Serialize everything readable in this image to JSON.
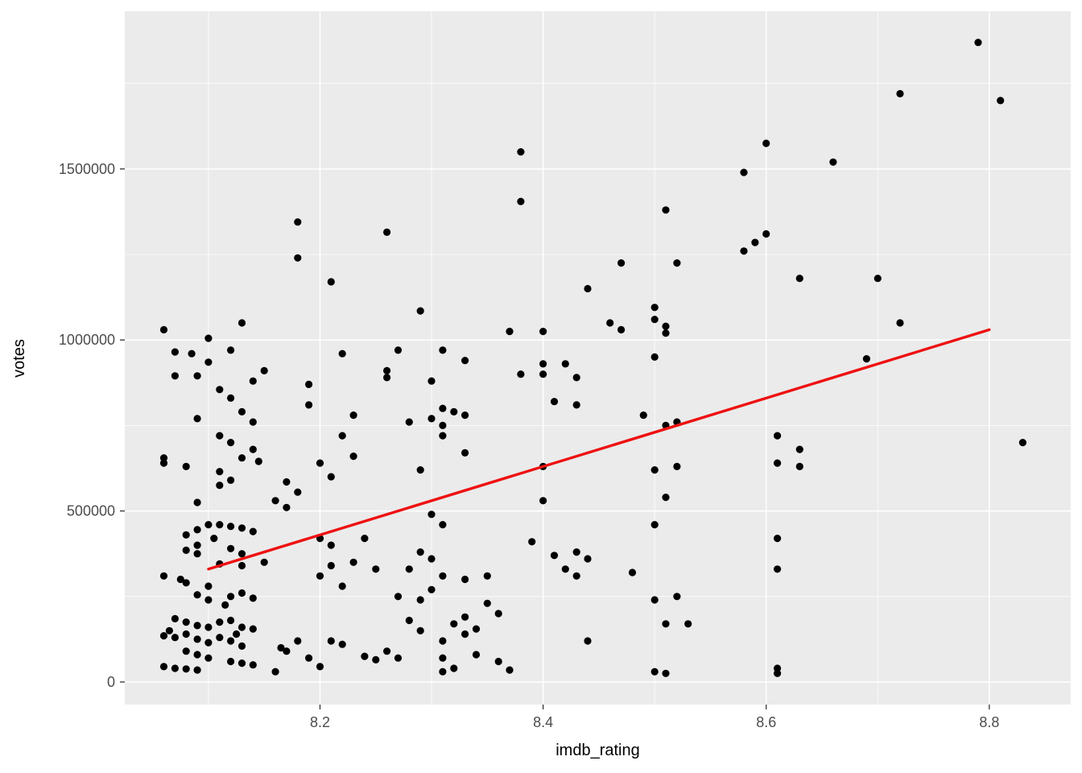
{
  "chart_data": {
    "type": "scatter",
    "title": "",
    "xlabel": "imdb_rating",
    "ylabel": "votes",
    "xlim": [
      8.025,
      8.873
    ],
    "ylim": [
      -66000,
      1961000
    ],
    "x_ticks": [
      8.2,
      8.4,
      8.6,
      8.8
    ],
    "x_tick_labels": [
      "8.2",
      "8.4",
      "8.6",
      "8.8"
    ],
    "x_minor_ticks": [
      8.1,
      8.3,
      8.5,
      8.7
    ],
    "y_ticks": [
      0,
      500000,
      1000000,
      1500000
    ],
    "y_tick_labels": [
      "0",
      "500000",
      "1000000",
      "1500000"
    ],
    "y_minor_ticks": [
      250000,
      750000,
      1250000,
      1750000
    ],
    "grid": true,
    "legend": "none",
    "panel_color": "#EBEBEB",
    "grid_color": "#FFFFFF",
    "point_color": "#000000",
    "point_radius": 4.6,
    "trend_color": "#EE1111",
    "trend_width": 3.4,
    "tick_label_color": "#4D4D4D",
    "tick_mark_color": "#333333",
    "trend_line": {
      "x1": 8.1,
      "y1": 330000,
      "x2": 8.8,
      "y2": 1030000
    },
    "points": [
      [
        8.06,
        1030000
      ],
      [
        8.06,
        655000
      ],
      [
        8.06,
        640000
      ],
      [
        8.06,
        310000
      ],
      [
        8.06,
        135000
      ],
      [
        8.06,
        45000
      ],
      [
        8.065,
        150000
      ],
      [
        8.07,
        965000
      ],
      [
        8.07,
        895000
      ],
      [
        8.07,
        185000
      ],
      [
        8.07,
        130000
      ],
      [
        8.07,
        40000
      ],
      [
        8.075,
        300000
      ],
      [
        8.08,
        630000
      ],
      [
        8.08,
        430000
      ],
      [
        8.08,
        385000
      ],
      [
        8.08,
        290000
      ],
      [
        8.08,
        175000
      ],
      [
        8.08,
        140000
      ],
      [
        8.08,
        90000
      ],
      [
        8.08,
        38000
      ],
      [
        8.085,
        960000
      ],
      [
        8.09,
        895000
      ],
      [
        8.09,
        770000
      ],
      [
        8.09,
        525000
      ],
      [
        8.09,
        445000
      ],
      [
        8.09,
        400000
      ],
      [
        8.09,
        375000
      ],
      [
        8.09,
        255000
      ],
      [
        8.09,
        165000
      ],
      [
        8.09,
        125000
      ],
      [
        8.09,
        80000
      ],
      [
        8.09,
        35000
      ],
      [
        8.1,
        1005000
      ],
      [
        8.1,
        935000
      ],
      [
        8.1,
        460000
      ],
      [
        8.1,
        280000
      ],
      [
        8.1,
        240000
      ],
      [
        8.1,
        160000
      ],
      [
        8.1,
        115000
      ],
      [
        8.1,
        70000
      ],
      [
        8.105,
        420000
      ],
      [
        8.11,
        855000
      ],
      [
        8.11,
        720000
      ],
      [
        8.11,
        615000
      ],
      [
        8.11,
        575000
      ],
      [
        8.11,
        460000
      ],
      [
        8.11,
        345000
      ],
      [
        8.11,
        175000
      ],
      [
        8.11,
        130000
      ],
      [
        8.115,
        225000
      ],
      [
        8.12,
        970000
      ],
      [
        8.12,
        830000
      ],
      [
        8.12,
        700000
      ],
      [
        8.12,
        590000
      ],
      [
        8.12,
        455000
      ],
      [
        8.12,
        390000
      ],
      [
        8.12,
        250000
      ],
      [
        8.12,
        180000
      ],
      [
        8.12,
        120000
      ],
      [
        8.12,
        60000
      ],
      [
        8.125,
        140000
      ],
      [
        8.13,
        1050000
      ],
      [
        8.13,
        790000
      ],
      [
        8.13,
        655000
      ],
      [
        8.13,
        450000
      ],
      [
        8.13,
        375000
      ],
      [
        8.13,
        340000
      ],
      [
        8.13,
        260000
      ],
      [
        8.13,
        160000
      ],
      [
        8.13,
        105000
      ],
      [
        8.13,
        55000
      ],
      [
        8.14,
        880000
      ],
      [
        8.14,
        760000
      ],
      [
        8.14,
        680000
      ],
      [
        8.14,
        440000
      ],
      [
        8.14,
        245000
      ],
      [
        8.14,
        155000
      ],
      [
        8.14,
        50000
      ],
      [
        8.145,
        645000
      ],
      [
        8.15,
        910000
      ],
      [
        8.15,
        350000
      ],
      [
        8.16,
        530000
      ],
      [
        8.16,
        30000
      ],
      [
        8.165,
        100000
      ],
      [
        8.17,
        585000
      ],
      [
        8.17,
        510000
      ],
      [
        8.17,
        90000
      ],
      [
        8.18,
        1345000
      ],
      [
        8.18,
        1240000
      ],
      [
        8.18,
        555000
      ],
      [
        8.18,
        120000
      ],
      [
        8.19,
        870000
      ],
      [
        8.19,
        810000
      ],
      [
        8.19,
        70000
      ],
      [
        8.2,
        640000
      ],
      [
        8.2,
        420000
      ],
      [
        8.2,
        310000
      ],
      [
        8.2,
        45000
      ],
      [
        8.21,
        1170000
      ],
      [
        8.21,
        600000
      ],
      [
        8.21,
        400000
      ],
      [
        8.21,
        340000
      ],
      [
        8.21,
        120000
      ],
      [
        8.22,
        960000
      ],
      [
        8.22,
        720000
      ],
      [
        8.22,
        280000
      ],
      [
        8.22,
        110000
      ],
      [
        8.23,
        780000
      ],
      [
        8.23,
        660000
      ],
      [
        8.23,
        350000
      ],
      [
        8.24,
        420000
      ],
      [
        8.24,
        75000
      ],
      [
        8.25,
        330000
      ],
      [
        8.25,
        65000
      ],
      [
        8.26,
        1315000
      ],
      [
        8.26,
        910000
      ],
      [
        8.26,
        890000
      ],
      [
        8.26,
        90000
      ],
      [
        8.27,
        970000
      ],
      [
        8.27,
        250000
      ],
      [
        8.27,
        70000
      ],
      [
        8.28,
        760000
      ],
      [
        8.28,
        330000
      ],
      [
        8.28,
        180000
      ],
      [
        8.29,
        1085000
      ],
      [
        8.29,
        620000
      ],
      [
        8.29,
        380000
      ],
      [
        8.29,
        240000
      ],
      [
        8.29,
        150000
      ],
      [
        8.3,
        880000
      ],
      [
        8.3,
        770000
      ],
      [
        8.3,
        490000
      ],
      [
        8.3,
        360000
      ],
      [
        8.3,
        270000
      ],
      [
        8.31,
        970000
      ],
      [
        8.31,
        800000
      ],
      [
        8.31,
        750000
      ],
      [
        8.31,
        720000
      ],
      [
        8.31,
        460000
      ],
      [
        8.31,
        310000
      ],
      [
        8.31,
        120000
      ],
      [
        8.31,
        70000
      ],
      [
        8.31,
        30000
      ],
      [
        8.32,
        790000
      ],
      [
        8.32,
        170000
      ],
      [
        8.32,
        40000
      ],
      [
        8.33,
        940000
      ],
      [
        8.33,
        780000
      ],
      [
        8.33,
        670000
      ],
      [
        8.33,
        300000
      ],
      [
        8.33,
        190000
      ],
      [
        8.33,
        140000
      ],
      [
        8.34,
        155000
      ],
      [
        8.34,
        80000
      ],
      [
        8.35,
        230000
      ],
      [
        8.35,
        310000
      ],
      [
        8.36,
        200000
      ],
      [
        8.36,
        60000
      ],
      [
        8.37,
        1025000
      ],
      [
        8.37,
        35000
      ],
      [
        8.38,
        1550000
      ],
      [
        8.38,
        1405000
      ],
      [
        8.38,
        900000
      ],
      [
        8.39,
        410000
      ],
      [
        8.4,
        1025000
      ],
      [
        8.4,
        930000
      ],
      [
        8.4,
        900000
      ],
      [
        8.4,
        630000
      ],
      [
        8.4,
        530000
      ],
      [
        8.41,
        820000
      ],
      [
        8.41,
        370000
      ],
      [
        8.42,
        930000
      ],
      [
        8.42,
        330000
      ],
      [
        8.43,
        890000
      ],
      [
        8.43,
        810000
      ],
      [
        8.43,
        380000
      ],
      [
        8.43,
        310000
      ],
      [
        8.44,
        1150000
      ],
      [
        8.44,
        360000
      ],
      [
        8.44,
        120000
      ],
      [
        8.46,
        1050000
      ],
      [
        8.47,
        1225000
      ],
      [
        8.47,
        1030000
      ],
      [
        8.48,
        320000
      ],
      [
        8.49,
        780000
      ],
      [
        8.5,
        1095000
      ],
      [
        8.5,
        1060000
      ],
      [
        8.5,
        950000
      ],
      [
        8.5,
        620000
      ],
      [
        8.5,
        460000
      ],
      [
        8.5,
        240000
      ],
      [
        8.5,
        30000
      ],
      [
        8.51,
        1380000
      ],
      [
        8.51,
        1040000
      ],
      [
        8.51,
        1020000
      ],
      [
        8.51,
        750000
      ],
      [
        8.51,
        540000
      ],
      [
        8.51,
        170000
      ],
      [
        8.51,
        25000
      ],
      [
        8.52,
        1225000
      ],
      [
        8.52,
        760000
      ],
      [
        8.52,
        630000
      ],
      [
        8.52,
        250000
      ],
      [
        8.53,
        170000
      ],
      [
        8.58,
        1490000
      ],
      [
        8.58,
        1260000
      ],
      [
        8.59,
        1285000
      ],
      [
        8.6,
        1575000
      ],
      [
        8.6,
        1310000
      ],
      [
        8.61,
        720000
      ],
      [
        8.61,
        640000
      ],
      [
        8.61,
        420000
      ],
      [
        8.61,
        330000
      ],
      [
        8.61,
        40000
      ],
      [
        8.61,
        25000
      ],
      [
        8.63,
        1180000
      ],
      [
        8.63,
        680000
      ],
      [
        8.63,
        630000
      ],
      [
        8.66,
        1520000
      ],
      [
        8.69,
        945000
      ],
      [
        8.7,
        1180000
      ],
      [
        8.72,
        1720000
      ],
      [
        8.72,
        1050000
      ],
      [
        8.79,
        1870000
      ],
      [
        8.81,
        1700000
      ],
      [
        8.83,
        700000
      ]
    ]
  }
}
